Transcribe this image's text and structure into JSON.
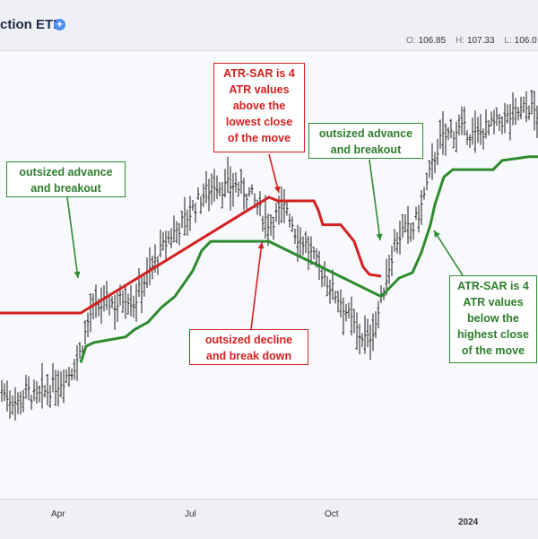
{
  "header": {
    "title": "ction ETF",
    "ohlc": [
      {
        "key": "O:",
        "value": "106.85"
      },
      {
        "key": "H:",
        "value": "107.33"
      },
      {
        "key": "L:",
        "value": "106.0"
      }
    ]
  },
  "callouts": {
    "advance_left": "outsized advance\nand breakout",
    "sar_above": "ATR-SAR is 4\nATR values\nabove the\nlowest close\nof the move",
    "advance_mid": "outsized advance\nand breakout",
    "decline": "outsized decline\nand break down",
    "sar_below": "ATR-SAR is 4\nATR values\nbelow the\nhighest close\nof the move"
  },
  "axis": {
    "tick_apr": "Apr",
    "tick_jul": "Jul",
    "tick_oct": "Oct",
    "tick_2024": "2024"
  },
  "colors": {
    "price_bars": "#1a1a1a",
    "sar_up": "#2e8b2e",
    "sar_down": "#d42020"
  },
  "chart_data": {
    "type": "line",
    "title": "",
    "xlabel": "",
    "ylabel": "",
    "x_ticks": [
      "Apr",
      "Jul",
      "Oct",
      "2024"
    ],
    "ylim": [
      88,
      112
    ],
    "series": [
      {
        "kind": "price_close",
        "x": [
          0,
          10,
          20,
          30,
          40,
          50,
          60,
          70,
          80,
          90,
          100,
          110,
          120,
          130,
          140,
          150,
          160,
          170,
          180,
          190,
          200,
          210,
          220,
          230,
          240,
          250,
          260,
          270,
          280,
          290,
          300,
          310,
          320,
          330,
          340,
          350,
          360,
          370,
          380,
          390,
          400,
          410,
          420,
          430,
          440,
          450,
          460,
          470,
          480,
          490,
          500,
          510,
          520,
          530,
          540,
          550,
          560,
          570,
          580,
          590,
          600
        ],
        "values": [
          93.8,
          93.3,
          93.0,
          93.7,
          93.2,
          93.6,
          93.9,
          94.3,
          94.8,
          95.8,
          97.8,
          98.2,
          98.6,
          98.3,
          98.9,
          98.5,
          99.6,
          100.4,
          101.3,
          102.1,
          102.6,
          103.2,
          103.9,
          104.5,
          105.0,
          104.7,
          104.9,
          104.6,
          104.3,
          103.4,
          102.8,
          103.3,
          103.7,
          102.2,
          101.7,
          100.8,
          100.1,
          99.2,
          98.6,
          97.6,
          96.8,
          96.4,
          97.5,
          99.6,
          101.7,
          102.4,
          102.4,
          103.7,
          105.6,
          107.2,
          107.6,
          107.9,
          107.8,
          107.5,
          107.9,
          108.1,
          108.4,
          108.6,
          108.9,
          109.1,
          108.7
        ]
      },
      {
        "kind": "atr_sar_down",
        "x": [
          0,
          90,
          300,
          310,
          350,
          355,
          360,
          370,
          380,
          395,
          405,
          412,
          425
        ],
        "values": [
          97.9,
          97.9,
          104.2,
          104.0,
          104.0,
          103.5,
          102.7,
          102.7,
          102.7,
          101.8,
          100.4,
          100.0,
          99.9
        ]
      },
      {
        "kind": "atr_sar_up",
        "x": [
          90,
          96,
          105,
          140,
          150,
          165,
          180,
          195,
          205,
          215,
          225,
          235,
          290,
          300,
          425,
          445,
          460,
          470,
          480,
          485,
          495,
          505,
          550,
          560,
          590,
          600
        ],
        "values": [
          95.2,
          96.1,
          96.3,
          96.6,
          97.0,
          97.4,
          98.2,
          98.8,
          99.5,
          100.2,
          101.3,
          101.8,
          101.8,
          101.8,
          98.8,
          99.8,
          100.1,
          101.2,
          102.7,
          103.8,
          105.3,
          105.7,
          105.7,
          106.2,
          106.4,
          106.4
        ]
      }
    ],
    "grid": false,
    "legend": "none"
  }
}
